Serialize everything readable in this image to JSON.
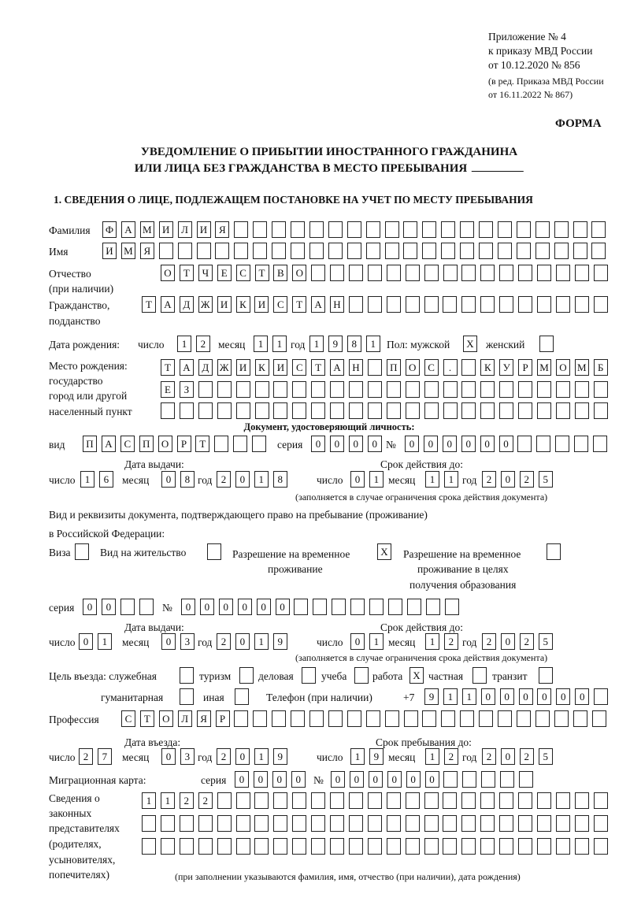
{
  "header": {
    "appendix": "Приложение № 4",
    "order": "к приказу МВД России",
    "order_date": "от 10.12.2020 № 856",
    "revision1": "(в ред. Приказа МВД России",
    "revision2": "от 16.11.2022 № 867)",
    "form_label": "ФОРМА",
    "title1": "УВЕДОМЛЕНИЕ О ПРИБЫТИИ ИНОСТРАННОГО ГРАЖДАНИНА",
    "title2": "ИЛИ ЛИЦА БЕЗ ГРАЖДАНСТВА В МЕСТО ПРЕБЫВАНИЯ",
    "section1": "1. СВЕДЕНИЯ О ЛИЦЕ, ПОДЛЕЖАЩЕМ ПОСТАНОВКЕ НА УЧЕТ ПО МЕСТУ ПРЕБЫВАНИЯ"
  },
  "labels": {
    "surname": "Фамилия",
    "name": "Имя",
    "patronymic1": "Отчество",
    "patronymic2": "(при наличии)",
    "citizenship1": "Гражданство,",
    "citizenship2": "подданство",
    "birth_date": "Дата рождения:",
    "day": "число",
    "month": "месяц",
    "year": "год",
    "sex_male": "Пол: мужской",
    "sex_female": "женский",
    "birth_place1": "Место рождения:",
    "birth_place2": "государство",
    "birth_place3": "город или другой",
    "birth_place4": "населенный пункт",
    "id_doc": "Документ, удостоверяющий личность:",
    "kind": "вид",
    "series": "серия",
    "number": "№",
    "issue_date": "Дата выдачи:",
    "valid_until": "Срок действия до:",
    "validity_note": "(заполняется в случае ограничения срока действия документа)",
    "right_doc1": "Вид и реквизиты документа, подтверждающего право на пребывание (проживание)",
    "right_doc2": "в Российской Федерации:",
    "visa": "Виза",
    "residence": "Вид на жительство",
    "temp_res1": "Разрешение на временное",
    "temp_res2": "проживание",
    "temp_edu1": "Разрешение на временное",
    "temp_edu2": "проживание в целях",
    "temp_edu3": "получения образования",
    "purpose": "Цель въезда: служебная",
    "tourism": "туризм",
    "business": "деловая",
    "study": "учеба",
    "work": "работа",
    "private": "частная",
    "transit": "транзит",
    "humanitarian": "гуманитарная",
    "other": "иная",
    "phone": "Телефон (при наличии)",
    "phone_prefix": "+7",
    "profession": "Профессия",
    "entry_date": "Дата въезда:",
    "stay_until": "Срок пребывания до:",
    "migration_card": "Миграционная карта:",
    "reps1": "Сведения о",
    "reps2": "законных",
    "reps3": "представителях",
    "reps4": "(родителях,",
    "reps5": "усыновителях,",
    "reps6": "попечителях)",
    "reps_note": "(при заполнении указываются фамилия, имя, отчество (при наличии), дата рождения)"
  },
  "person": {
    "surname": "ФАМИЛИЯ",
    "name": "ИМЯ",
    "patronymic": "ОТЧЕСТВО",
    "citizenship": "ТАДЖИКИСТАН",
    "birth_day": "12",
    "birth_month": "11",
    "birth_year": "1981",
    "sex_male": "X",
    "sex_female": "",
    "birth_place_1": "ТАДЖИКИСТАН ПОС. КУРМОМБ",
    "birth_place_2": "ЕЗ",
    "birth_place_3": ""
  },
  "id_document": {
    "kind": "ПАСПОРТ",
    "series": "0000",
    "number": "000000",
    "issue_day": "16",
    "issue_month": "08",
    "issue_year": "2018",
    "valid_day": "01",
    "valid_month": "11",
    "valid_year": "2025"
  },
  "right_document": {
    "visa": "",
    "residence": "",
    "temp_residence": "X",
    "temp_residence_edu": "",
    "series": "00",
    "number": "000000",
    "issue_day": "01",
    "issue_month": "03",
    "issue_year": "2019",
    "valid_day": "01",
    "valid_month": "12",
    "valid_year": "2025"
  },
  "purpose": {
    "official": "",
    "tourism": "",
    "business": "",
    "study": "",
    "work": "X",
    "private": "",
    "transit": "",
    "humanitarian": "",
    "other": ""
  },
  "phone": "911000000",
  "profession": "СТОЛЯР",
  "entry": {
    "entry_day": "27",
    "entry_month": "03",
    "entry_year": "2019",
    "stay_day": "19",
    "stay_month": "12",
    "stay_year": "2025"
  },
  "migration_card": {
    "series": "0000",
    "number": "000000"
  },
  "representatives": {
    "line1": "1122",
    "line2": "",
    "line3": ""
  }
}
